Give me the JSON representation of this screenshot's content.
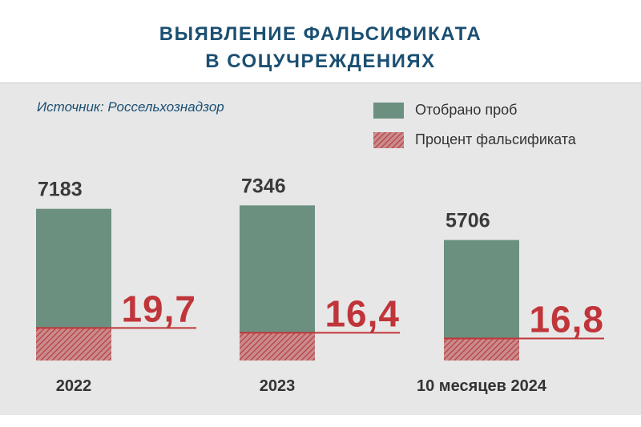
{
  "title_line1": "ВЫЯВЛЕНИЕ ФАЛЬСИФИКАТА",
  "title_line2": "В СОЦУЧРЕЖДЕНИЯХ",
  "source": "Источник: Россельхознадзор",
  "legend": {
    "samples": "Отобрано проб",
    "percent": "Процент фальсификата"
  },
  "colors": {
    "bar": "#6b9080",
    "accent": "#c0353a",
    "title": "#1b4f72",
    "panel": "#e7e7e7"
  },
  "chart_data": {
    "type": "bar",
    "categories": [
      "2022",
      "2023",
      "10 месяцев 2024"
    ],
    "series": [
      {
        "name": "Отобрано проб",
        "values": [
          7183,
          7346,
          5706
        ],
        "labels": [
          "7183",
          "7346",
          "5706"
        ]
      },
      {
        "name": "Процент фальсификата",
        "values": [
          19.7,
          16.4,
          16.8
        ],
        "labels": [
          "19,7",
          "16,4",
          "16,8"
        ]
      }
    ],
    "grid": false,
    "legend_position": "top-right"
  }
}
